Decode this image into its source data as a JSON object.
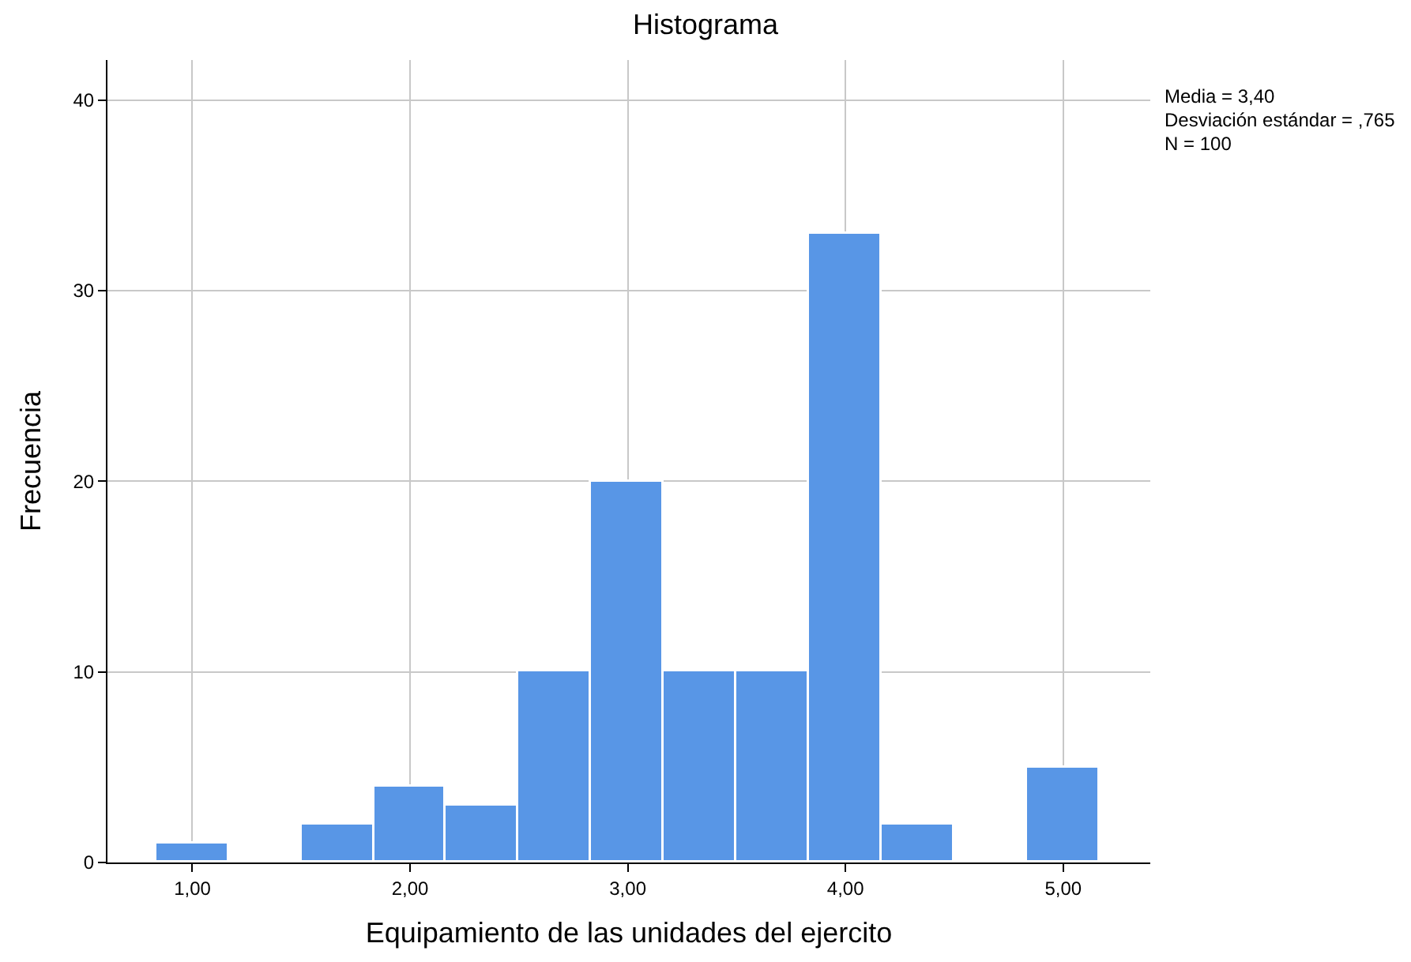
{
  "chart_data": {
    "type": "histogram",
    "title": "Histograma",
    "xlabel": "Equipamiento de las unidades del ejercito",
    "ylabel": "Frecuencia",
    "bins": [
      0.8333,
      1.1667,
      1.5,
      1.8333,
      2.1667,
      2.5,
      2.8333,
      3.1667,
      3.5,
      3.8333,
      4.1667,
      4.5,
      4.8333,
      5.1667
    ],
    "values": [
      1,
      0,
      2,
      4,
      3,
      10,
      20,
      10,
      10,
      33,
      2,
      0,
      5
    ],
    "color": "#5896e6",
    "xlim": [
      0.61,
      5.4
    ],
    "ylim": [
      0,
      42.1
    ],
    "xticks": [
      {
        "value": 1,
        "label": "1,00"
      },
      {
        "value": 2,
        "label": "2,00"
      },
      {
        "value": 3,
        "label": "3,00"
      },
      {
        "value": 4,
        "label": "4,00"
      },
      {
        "value": 5,
        "label": "5,00"
      }
    ],
    "yticks": [
      0,
      10,
      20,
      30,
      40
    ],
    "grid": true,
    "annotations": [
      "Media = 3,40",
      "Desviación estándar = ,765",
      "N = 100"
    ]
  }
}
